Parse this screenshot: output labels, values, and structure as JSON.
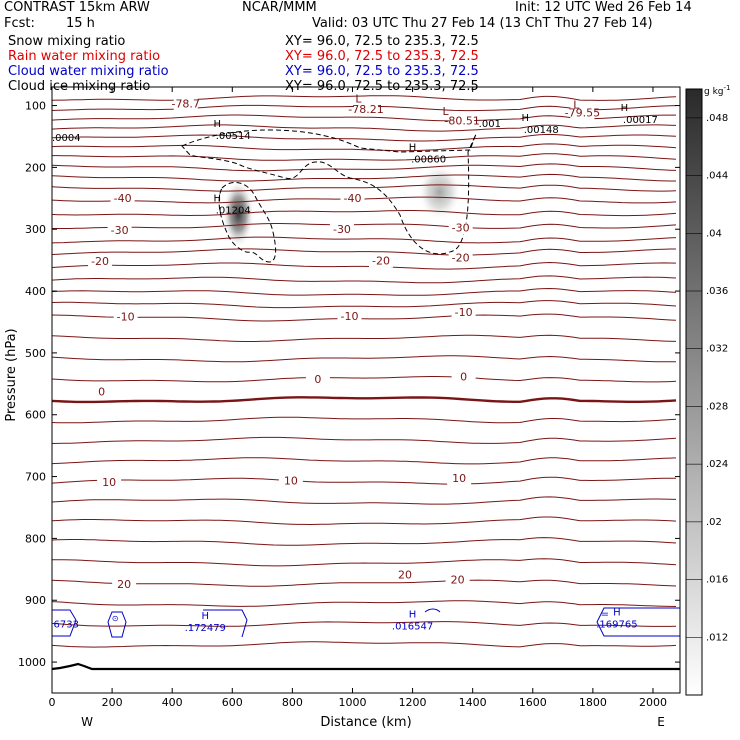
{
  "header": {
    "model": "CONTRAST 15km ARW",
    "center": "NCAR/MMM",
    "init": "Init: 12 UTC Wed 26 Feb 14",
    "fcst_label": "Fcst:",
    "fcst_value": "15 h",
    "valid": "Valid: 03 UTC Thu 27 Feb 14 (13 ChT Thu 27 Feb 14)",
    "fields": [
      {
        "name": "Snow mixing ratio",
        "xy": "XY=  96.0, 72.5 to 235.3, 72.5",
        "color": "#000000"
      },
      {
        "name": "Rain water mixing ratio",
        "xy": "XY=  96.0, 72.5 to 235.3, 72.5",
        "color": "#e00000"
      },
      {
        "name": "Cloud water mixing ratio",
        "xy": "XY=  96.0, 72.5 to 235.3, 72.5",
        "color": "#0000c8"
      },
      {
        "name": "Cloud ice mixing ratio",
        "xy": "XY=  96.0, 72.5 to 235.3, 72.5",
        "color": "#000000"
      }
    ]
  },
  "chart_data": {
    "type": "contour",
    "xlabel": "Distance (km)",
    "ylabel": "Pressure (hPa)",
    "xlim": [
      0,
      2090
    ],
    "ylim": [
      1050,
      70
    ],
    "x_ticks": [
      0,
      200,
      400,
      600,
      800,
      1000,
      1200,
      1400,
      1600,
      1800,
      2000
    ],
    "y_ticks": [
      100,
      200,
      300,
      400,
      500,
      600,
      700,
      800,
      900,
      1000
    ],
    "west_label": "W",
    "east_label": "E",
    "colorbar": {
      "unit": "g kg",
      "unit_exp": "-1",
      "ticks": [
        ".012",
        ".016",
        ".02",
        ".024",
        ".028",
        ".032",
        ".036",
        ".04",
        ".044",
        ".048"
      ],
      "tick_values": [
        0.012,
        0.016,
        0.02,
        0.024,
        0.028,
        0.032,
        0.036,
        0.04,
        0.044,
        0.048
      ],
      "range": [
        0.008,
        0.05
      ]
    },
    "temperature_labels": [
      {
        "text": "-78.7",
        "x": 445,
        "p": 103
      },
      {
        "text": "-78.21",
        "x": 1045,
        "p": 112
      },
      {
        "text": "-80.51",
        "x": 1365,
        "p": 131
      },
      {
        "text": "-79.55",
        "x": 1765,
        "p": 118
      },
      {
        "text": "-40",
        "x": 235,
        "p": 256
      },
      {
        "text": "-40",
        "x": 1000,
        "p": 256
      },
      {
        "text": "-30",
        "x": 225,
        "p": 308
      },
      {
        "text": "-30",
        "x": 965,
        "p": 306
      },
      {
        "text": "-30",
        "x": 1360,
        "p": 304
      },
      {
        "text": "-20",
        "x": 160,
        "p": 358
      },
      {
        "text": "-20",
        "x": 1095,
        "p": 357
      },
      {
        "text": "-20",
        "x": 1360,
        "p": 352
      },
      {
        "text": "-10",
        "x": 245,
        "p": 448
      },
      {
        "text": "-10",
        "x": 990,
        "p": 447
      },
      {
        "text": "-10",
        "x": 1370,
        "p": 440
      },
      {
        "text": "0",
        "x": 165,
        "p": 569
      },
      {
        "text": "0",
        "x": 885,
        "p": 549
      },
      {
        "text": "0",
        "x": 1370,
        "p": 545
      },
      {
        "text": "10",
        "x": 190,
        "p": 715
      },
      {
        "text": "10",
        "x": 795,
        "p": 713
      },
      {
        "text": "10",
        "x": 1355,
        "p": 709
      },
      {
        "text": "20",
        "x": 240,
        "p": 880
      },
      {
        "text": "20",
        "x": 1175,
        "p": 865
      },
      {
        "text": "20",
        "x": 1350,
        "p": 873
      }
    ],
    "low_markers": [
      {
        "text": "L",
        "x": 1020,
        "p": 95
      },
      {
        "text": "L",
        "x": 1310,
        "p": 115
      },
      {
        "text": "L",
        "x": 1745,
        "p": 105
      }
    ],
    "high_markers": [
      {
        "text": "H",
        "value": ".00514",
        "x": 550,
        "p": 135
      },
      {
        "text": "H",
        "value": ".01204",
        "x": 550,
        "p": 255
      },
      {
        "text": "H",
        "value": ".00860",
        "x": 1200,
        "p": 173
      },
      {
        "text": "H",
        "value": ".00148",
        "x": 1575,
        "p": 125
      },
      {
        "text": "H",
        "value": ".00017",
        "x": 1905,
        "p": 109
      }
    ],
    "small_values": [
      {
        "text": ".0004",
        "x": 0,
        "p": 151
      },
      {
        "text": ".001",
        "x": 1420,
        "p": 128
      }
    ],
    "cloud_water_labels": [
      {
        "text": "6733",
        "x": 5,
        "p": 944
      },
      {
        "text": "H",
        "value": ".172479",
        "x": 510,
        "p": 930
      },
      {
        "text": "H",
        "value": ".016547",
        "x": 1200,
        "p": 928
      },
      {
        "text": "H",
        "value": ".169765",
        "x": 1880,
        "p": 925
      }
    ],
    "shaded_maxima": [
      {
        "x": 620,
        "p": 275,
        "value": 0.045
      },
      {
        "x": 1290,
        "p": 240,
        "value": 0.024
      }
    ]
  }
}
